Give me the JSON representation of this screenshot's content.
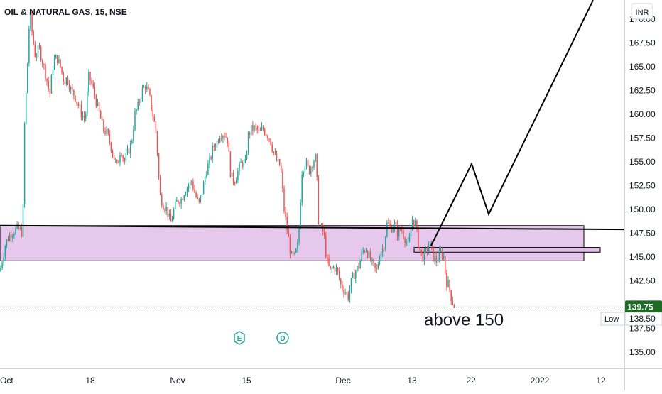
{
  "header": {
    "title": "OIL & NATURAL GAS, 15, NSE",
    "currency": "INR"
  },
  "colors": {
    "up": "#26a69a",
    "down": "#ef5350",
    "zone_fill": "#e1bee7",
    "drawing": "#000000",
    "current_price_bg": "#1e6b26",
    "marker": "#26a69a"
  },
  "chart_data": {
    "type": "candlestick",
    "symbol": "OIL & NATURAL GAS",
    "interval": "15",
    "exchange": "NSE",
    "y_axis": {
      "ticks": [
        "170.00",
        "167.50",
        "165.00",
        "162.50",
        "160.00",
        "157.50",
        "155.00",
        "152.50",
        "150.00",
        "147.50",
        "145.00",
        "142.50",
        "137.50",
        "135.00"
      ],
      "tick_values": [
        170,
        167.5,
        165,
        162.5,
        160,
        157.5,
        155,
        152.5,
        150,
        147.5,
        145,
        142.5,
        137.5,
        135
      ],
      "range": [
        133.5,
        172
      ]
    },
    "x_axis": {
      "ticks": [
        "Oct",
        "18",
        "Nov",
        "15",
        "Dec",
        "13",
        "22",
        "2022",
        "12"
      ],
      "tick_index": [
        0,
        127,
        250,
        347,
        483,
        580,
        663,
        760,
        846
      ]
    },
    "price_path": [
      [
        0,
        143.5
      ],
      [
        8,
        146.5
      ],
      [
        15,
        147.5
      ],
      [
        25,
        148
      ],
      [
        32,
        147.5
      ],
      [
        34,
        158
      ],
      [
        38,
        164
      ],
      [
        42,
        171
      ],
      [
        46,
        168
      ],
      [
        50,
        166
      ],
      [
        55,
        167
      ],
      [
        60,
        165.5
      ],
      [
        65,
        164
      ],
      [
        70,
        162
      ],
      [
        75,
        165.5
      ],
      [
        80,
        166
      ],
      [
        85,
        165
      ],
      [
        90,
        163.5
      ],
      [
        95,
        163.8
      ],
      [
        100,
        162.5
      ],
      [
        105,
        162
      ],
      [
        110,
        161
      ],
      [
        115,
        160
      ],
      [
        120,
        159.5
      ],
      [
        125,
        164
      ],
      [
        130,
        163
      ],
      [
        135,
        161.5
      ],
      [
        140,
        160
      ],
      [
        145,
        158.5
      ],
      [
        150,
        158
      ],
      [
        155,
        157
      ],
      [
        160,
        155.5
      ],
      [
        165,
        154.5
      ],
      [
        170,
        156.5
      ],
      [
        175,
        155
      ],
      [
        180,
        156
      ],
      [
        185,
        157
      ],
      [
        190,
        160
      ],
      [
        195,
        161
      ],
      [
        200,
        162.5
      ],
      [
        205,
        163
      ],
      [
        210,
        162
      ],
      [
        215,
        160
      ],
      [
        220,
        158
      ],
      [
        225,
        151.5
      ],
      [
        230,
        150.5
      ],
      [
        235,
        150
      ],
      [
        240,
        148.5
      ],
      [
        245,
        150
      ],
      [
        250,
        151
      ],
      [
        255,
        151
      ],
      [
        260,
        152
      ],
      [
        265,
        152.5
      ],
      [
        270,
        153
      ],
      [
        275,
        151.5
      ],
      [
        280,
        150.5
      ],
      [
        285,
        152
      ],
      [
        290,
        154
      ],
      [
        295,
        155
      ],
      [
        300,
        156.5
      ],
      [
        305,
        157
      ],
      [
        310,
        158
      ],
      [
        315,
        158
      ],
      [
        320,
        157.5
      ],
      [
        325,
        153.5
      ],
      [
        330,
        153
      ],
      [
        335,
        154
      ],
      [
        340,
        155
      ],
      [
        345,
        154.5
      ],
      [
        350,
        158
      ],
      [
        355,
        158.5
      ],
      [
        360,
        158.5
      ],
      [
        365,
        158
      ],
      [
        370,
        158.5
      ],
      [
        375,
        158
      ],
      [
        380,
        157.5
      ],
      [
        385,
        156
      ],
      [
        390,
        155
      ],
      [
        395,
        154.5
      ],
      [
        400,
        150
      ],
      [
        405,
        147.5
      ],
      [
        410,
        145
      ],
      [
        415,
        145
      ],
      [
        420,
        146.5
      ],
      [
        425,
        154
      ],
      [
        430,
        155
      ],
      [
        435,
        154
      ],
      [
        440,
        155
      ],
      [
        445,
        155.5
      ],
      [
        448,
        149
      ],
      [
        452,
        148
      ],
      [
        456,
        147.5
      ],
      [
        460,
        144.5
      ],
      [
        465,
        143.5
      ],
      [
        470,
        144
      ],
      [
        475,
        143.5
      ],
      [
        480,
        142
      ],
      [
        485,
        141.5
      ],
      [
        490,
        140.8
      ],
      [
        495,
        142.5
      ],
      [
        500,
        143.5
      ],
      [
        505,
        144
      ],
      [
        510,
        145.5
      ],
      [
        515,
        146
      ],
      [
        520,
        145
      ],
      [
        525,
        144
      ],
      [
        530,
        143.5
      ],
      [
        535,
        145.5
      ],
      [
        540,
        146
      ],
      [
        545,
        148.5
      ],
      [
        550,
        148
      ],
      [
        555,
        148.5
      ],
      [
        560,
        147.5
      ],
      [
        565,
        148
      ],
      [
        570,
        147
      ],
      [
        575,
        146
      ],
      [
        580,
        149
      ],
      [
        585,
        148.5
      ],
      [
        590,
        146
      ],
      [
        595,
        145
      ],
      [
        600,
        145.5
      ],
      [
        605,
        146.5
      ],
      [
        610,
        145
      ],
      [
        615,
        144.5
      ],
      [
        620,
        145.5
      ],
      [
        625,
        145
      ],
      [
        628,
        142.5
      ],
      [
        632,
        142
      ],
      [
        636,
        140.5
      ],
      [
        640,
        139.75
      ]
    ],
    "current_price": 139.75,
    "low_price": 138.5,
    "low_label": "Low",
    "annotations": [
      {
        "text": "above 150",
        "x": 597,
        "price": 137.8
      }
    ],
    "support_zone": {
      "top": 148.3,
      "bottom": 144.6,
      "x_start": 0,
      "x_end": 822
    },
    "small_zone": {
      "top": 146.0,
      "bottom": 145.5,
      "x_start": 583,
      "x_end": 845
    },
    "trendline": {
      "points": [
        [
          0,
          148.3
        ],
        [
          878,
          147.9
        ]
      ]
    },
    "projection_path": [
      [
        607,
        146.2
      ],
      [
        664,
        154.8
      ],
      [
        688,
        149.5
      ],
      [
        835,
        172
      ]
    ],
    "event_markers": [
      {
        "label": "E",
        "x": 337
      },
      {
        "label": "D",
        "x": 398
      }
    ],
    "grid": false,
    "dotted_price_line": 139.75
  }
}
